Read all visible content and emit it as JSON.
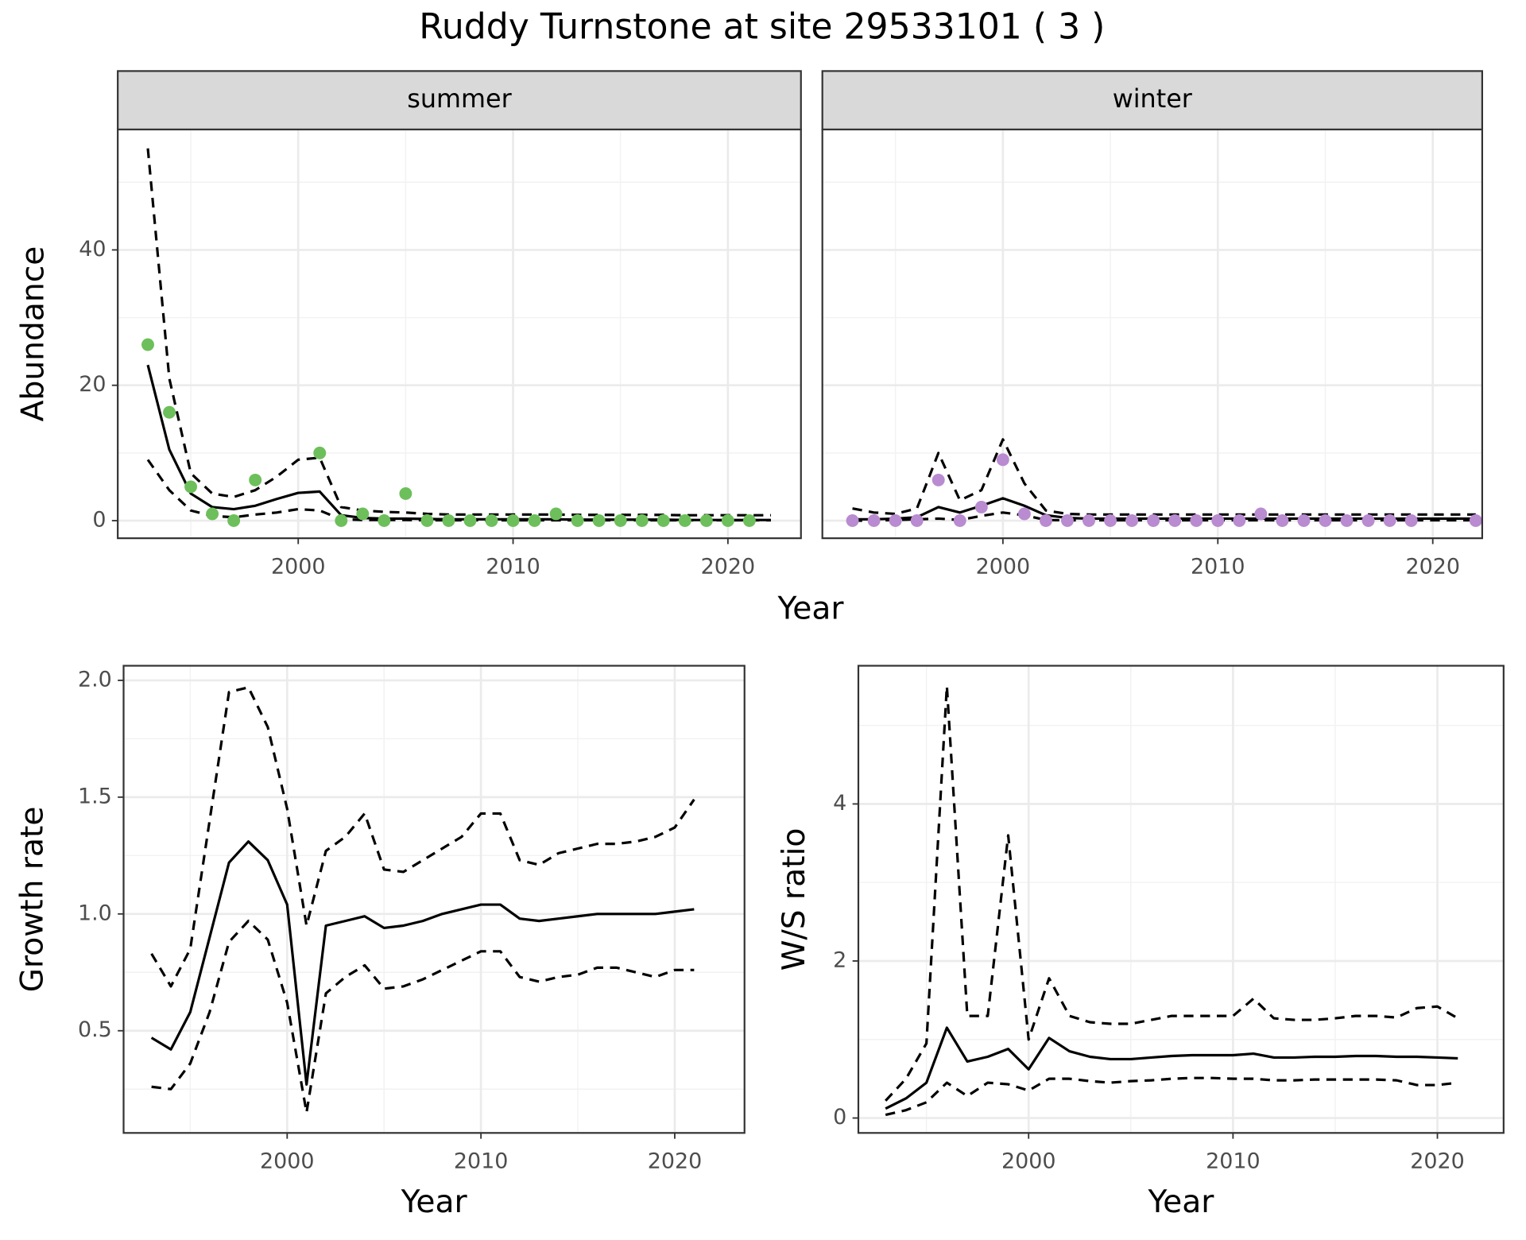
{
  "title": "Ruddy Turnstone at site 29533101 ( 3 )",
  "chart_data": [
    {
      "type": "line",
      "strip": "summer",
      "xlabel": "Year",
      "ylabel": "Abundance",
      "x": [
        1993,
        1994,
        1995,
        1996,
        1997,
        1998,
        1999,
        2000,
        2001,
        2002,
        2003,
        2004,
        2005,
        2006,
        2007,
        2008,
        2009,
        2010,
        2011,
        2012,
        2013,
        2014,
        2015,
        2016,
        2017,
        2018,
        2019,
        2020,
        2021,
        2022
      ],
      "series": [
        {
          "style": "dashed",
          "color": "#000000",
          "values": [
            55,
            21,
            7,
            4,
            3.5,
            4.5,
            6.5,
            9,
            9.3,
            2,
            1.5,
            1.3,
            1.2,
            1.0,
            0.9,
            0.9,
            0.9,
            0.9,
            0.9,
            0.9,
            0.85,
            0.85,
            0.85,
            0.85,
            0.85,
            0.8,
            0.8,
            0.8,
            0.8,
            0.8
          ]
        },
        {
          "style": "solid",
          "color": "#000000",
          "values": [
            23,
            10.5,
            4,
            2,
            1.7,
            2.2,
            3.2,
            4.1,
            4.3,
            0.8,
            0.4,
            0.3,
            0.3,
            0.25,
            0.2,
            0.2,
            0.2,
            0.2,
            0.2,
            0.2,
            0.15,
            0.15,
            0.15,
            0.15,
            0.15,
            0.1,
            0.1,
            0.1,
            0.1,
            0.1
          ]
        },
        {
          "style": "dashed",
          "color": "#000000",
          "values": [
            9,
            4.5,
            1.5,
            0.7,
            0.5,
            0.9,
            1.2,
            1.7,
            1.5,
            0.2,
            0.1,
            0.1,
            0.1,
            0.05,
            0.05,
            0.05,
            0.05,
            0.05,
            0.05,
            0.05,
            0.05,
            0.05,
            0.05,
            0.05,
            0.05,
            0.05,
            0.05,
            0.05,
            0.05,
            0.05
          ]
        },
        {
          "style": "points",
          "color": "#6dbf5b",
          "values": [
            26,
            16,
            5,
            1,
            0,
            6,
            null,
            null,
            10,
            0,
            1,
            0,
            4,
            0,
            0,
            0,
            0,
            0,
            0,
            1,
            0,
            0,
            0,
            0,
            0,
            0,
            0,
            0,
            0,
            null
          ]
        }
      ],
      "xlim": [
        1991.6,
        2023.4
      ],
      "ylim": [
        -2.6,
        57.8
      ],
      "xticks": [
        2000,
        2010,
        2020
      ],
      "yticks": [
        0,
        20,
        40
      ],
      "xminorticks": [
        1995,
        2005,
        2015
      ],
      "yminorticks": [
        10,
        30,
        50
      ],
      "grid": true,
      "show_ytick_labels": true
    },
    {
      "type": "line",
      "strip": "winter",
      "x": [
        1993,
        1994,
        1995,
        1996,
        1997,
        1998,
        1999,
        2000,
        2001,
        2002,
        2003,
        2004,
        2005,
        2006,
        2007,
        2008,
        2009,
        2010,
        2011,
        2012,
        2013,
        2014,
        2015,
        2016,
        2017,
        2018,
        2019,
        2020,
        2021,
        2022
      ],
      "series": [
        {
          "style": "dashed",
          "color": "#000000",
          "values": [
            1.8,
            1.2,
            1.0,
            1.8,
            10,
            3,
            4.5,
            12,
            5.5,
            1.5,
            1.0,
            0.9,
            0.9,
            0.9,
            0.9,
            0.9,
            0.9,
            0.9,
            0.9,
            0.9,
            0.9,
            0.9,
            0.9,
            0.9,
            0.9,
            0.9,
            0.9,
            0.9,
            0.9,
            0.9
          ]
        },
        {
          "style": "solid",
          "color": "#000000",
          "values": [
            0.2,
            0.2,
            0.3,
            0.5,
            2,
            1.2,
            2.2,
            3.3,
            2.2,
            0.8,
            0.4,
            0.3,
            0.3,
            0.3,
            0.3,
            0.3,
            0.3,
            0.3,
            0.3,
            0.3,
            0.3,
            0.3,
            0.3,
            0.3,
            0.3,
            0.3,
            0.3,
            0.3,
            0.3,
            0.3
          ]
        },
        {
          "style": "dashed",
          "color": "#000000",
          "values": [
            0,
            0,
            0.1,
            0.2,
            0.3,
            0.1,
            0.7,
            1.2,
            0.8,
            0.1,
            0.05,
            0.05,
            0.05,
            0.05,
            0.05,
            0.05,
            0.05,
            0.05,
            0.05,
            0.05,
            0.05,
            0.05,
            0.05,
            0.05,
            0.05,
            0.05,
            0.05,
            0.05,
            0.05,
            0.05
          ]
        },
        {
          "style": "points",
          "color": "#b98bd0",
          "values": [
            0,
            0,
            0,
            0,
            6,
            0,
            2,
            9,
            1,
            0,
            0,
            0,
            0,
            0,
            0,
            0,
            0,
            0,
            0,
            1,
            0,
            0,
            0,
            0,
            0,
            0,
            0,
            null,
            null,
            0
          ]
        }
      ],
      "xlim": [
        1991.6,
        2022.3
      ],
      "ylim": [
        -2.6,
        57.8
      ],
      "xticks": [
        2000,
        2010,
        2020
      ],
      "yticks": [
        0,
        20,
        40
      ],
      "xminorticks": [
        1995,
        2005,
        2015
      ],
      "yminorticks": [
        10,
        30,
        50
      ],
      "grid": true,
      "show_ytick_labels": false
    },
    {
      "type": "line",
      "xlabel": "Year",
      "ylabel": "Growth rate",
      "x": [
        1993,
        1994,
        1995,
        1996,
        1997,
        1998,
        1999,
        2000,
        2001,
        2002,
        2003,
        2004,
        2005,
        2006,
        2007,
        2008,
        2009,
        2010,
        2011,
        2012,
        2013,
        2014,
        2015,
        2016,
        2017,
        2018,
        2019,
        2020,
        2021
      ],
      "series": [
        {
          "style": "dashed",
          "color": "#000000",
          "values": [
            0.83,
            0.69,
            0.85,
            1.4,
            1.95,
            1.97,
            1.8,
            1.45,
            0.95,
            1.27,
            1.33,
            1.43,
            1.19,
            1.18,
            1.23,
            1.28,
            1.33,
            1.43,
            1.43,
            1.23,
            1.21,
            1.26,
            1.28,
            1.3,
            1.3,
            1.31,
            1.33,
            1.37,
            1.49
          ]
        },
        {
          "style": "solid",
          "color": "#000000",
          "values": [
            0.47,
            0.42,
            0.58,
            0.9,
            1.22,
            1.31,
            1.23,
            1.04,
            0.27,
            0.95,
            0.97,
            0.99,
            0.94,
            0.95,
            0.97,
            1.0,
            1.02,
            1.04,
            1.04,
            0.98,
            0.97,
            0.98,
            0.99,
            1.0,
            1.0,
            1.0,
            1.0,
            1.01,
            1.02
          ]
        },
        {
          "style": "dashed",
          "color": "#000000",
          "values": [
            0.26,
            0.25,
            0.36,
            0.58,
            0.88,
            0.97,
            0.89,
            0.62,
            0.15,
            0.66,
            0.73,
            0.78,
            0.68,
            0.69,
            0.72,
            0.76,
            0.8,
            0.84,
            0.84,
            0.73,
            0.71,
            0.73,
            0.74,
            0.77,
            0.77,
            0.75,
            0.73,
            0.76,
            0.76
          ]
        }
      ],
      "xlim": [
        1991.56,
        2023.6
      ],
      "ylim": [
        0.0625,
        2.0625
      ],
      "xticks": [
        2000,
        2010,
        2020
      ],
      "yticks": [
        0.5,
        {
          "value": 1,
          "label": "1.0"
        },
        1.5,
        {
          "value": 2,
          "label": "2.0"
        }
      ],
      "xminorticks": [
        1995,
        2005,
        2015
      ],
      "yminorticks": [
        0.25,
        0.75,
        1.25,
        1.75
      ],
      "grid": true,
      "show_ytick_labels": true
    },
    {
      "type": "line",
      "xlabel": "Year",
      "ylabel": "W/S ratio",
      "x": [
        1993,
        1994,
        1995,
        1996,
        1997,
        1998,
        1999,
        2000,
        2001,
        2002,
        2003,
        2004,
        2005,
        2006,
        2007,
        2008,
        2009,
        2010,
        2011,
        2012,
        2013,
        2014,
        2015,
        2016,
        2017,
        2018,
        2019,
        2020,
        2021
      ],
      "series": [
        {
          "style": "dashed",
          "color": "#000000",
          "values": [
            0.22,
            0.5,
            0.95,
            5.5,
            1.3,
            1.3,
            3.6,
            1.0,
            1.78,
            1.3,
            1.22,
            1.2,
            1.2,
            1.25,
            1.3,
            1.3,
            1.3,
            1.3,
            1.52,
            1.27,
            1.25,
            1.25,
            1.27,
            1.3,
            1.3,
            1.28,
            1.4,
            1.42,
            1.27
          ]
        },
        {
          "style": "solid",
          "color": "#000000",
          "values": [
            0.12,
            0.25,
            0.45,
            1.15,
            0.72,
            0.78,
            0.88,
            0.62,
            1.02,
            0.85,
            0.78,
            0.75,
            0.75,
            0.77,
            0.79,
            0.8,
            0.8,
            0.8,
            0.82,
            0.77,
            0.77,
            0.78,
            0.78,
            0.79,
            0.79,
            0.78,
            0.78,
            0.77,
            0.76
          ]
        },
        {
          "style": "dashed",
          "color": "#000000",
          "values": [
            0.04,
            0.1,
            0.2,
            0.45,
            0.28,
            0.45,
            0.43,
            0.35,
            0.5,
            0.5,
            0.47,
            0.45,
            0.47,
            0.48,
            0.5,
            0.51,
            0.51,
            0.5,
            0.5,
            0.48,
            0.48,
            0.49,
            0.49,
            0.49,
            0.49,
            0.48,
            0.42,
            0.42,
            0.45
          ]
        }
      ],
      "xlim": [
        1991.67,
        2023.24
      ],
      "ylim": [
        -0.19,
        5.76
      ],
      "xticks": [
        2000,
        2010,
        2020
      ],
      "yticks": [
        0,
        2,
        4
      ],
      "xminorticks": [
        1995,
        2005,
        2015
      ],
      "yminorticks": [
        1,
        3,
        5
      ],
      "grid": true,
      "show_ytick_labels": true
    }
  ]
}
